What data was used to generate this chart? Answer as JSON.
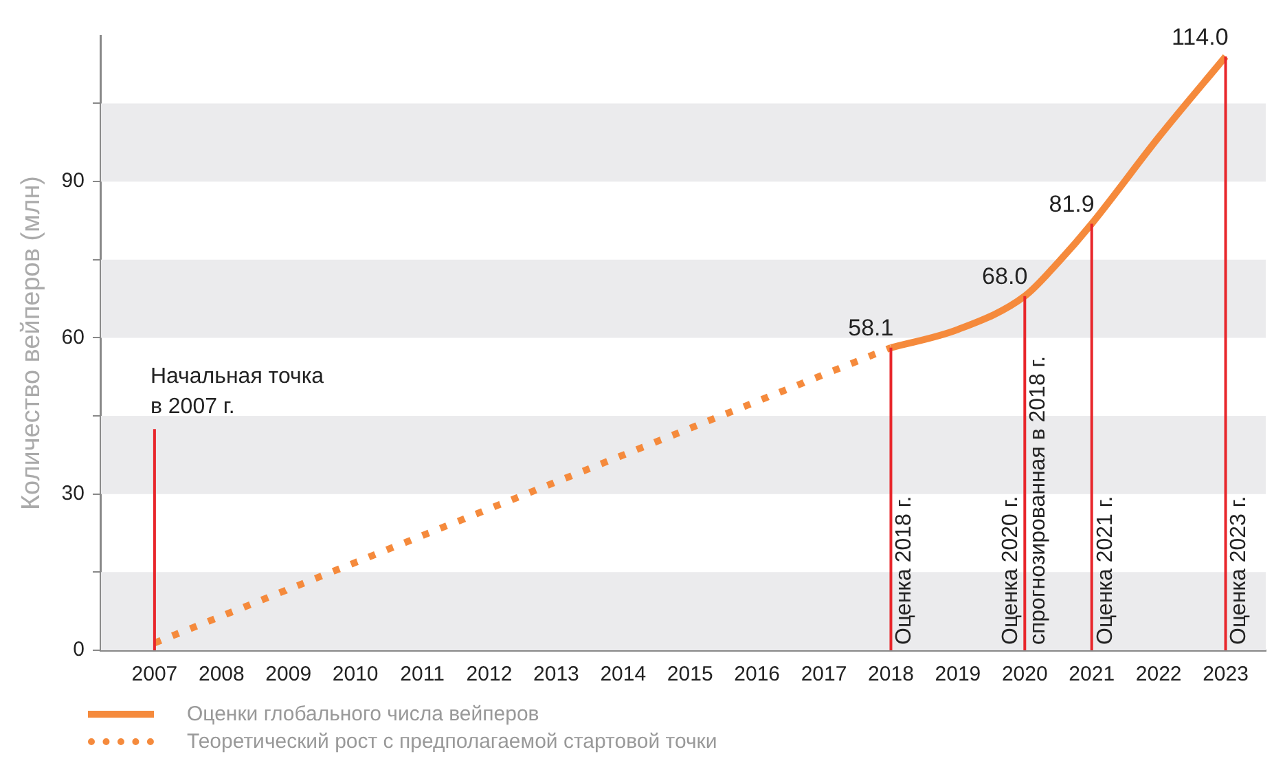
{
  "chart_data": {
    "type": "line",
    "ylabel": "Количество вейперов (млн)",
    "series": [
      {
        "name": "Оценки глобального числа вейперов",
        "color": "#f58a3c",
        "line_style": "solid",
        "x": [
          2018,
          2019,
          2020,
          2020.5,
          2021,
          2022,
          2023
        ],
        "values": [
          58.1,
          61.6,
          68.0,
          74.5,
          81.9,
          98.5,
          114.0
        ],
        "value_labels": [
          "58.1",
          null,
          "68.0",
          null,
          "81.9",
          null,
          "114.0"
        ]
      },
      {
        "name": "Теоретический рост с предполагаемой стартовой точки",
        "color": "#f58a3c",
        "line_style": "dotted",
        "x": [
          2007,
          2018
        ],
        "values": [
          1.4,
          58.1
        ]
      }
    ],
    "xlim": [
      2006.2,
      2023.6
    ],
    "xticks": [
      2007,
      2008,
      2009,
      2010,
      2011,
      2012,
      2013,
      2014,
      2015,
      2016,
      2017,
      2018,
      2019,
      2020,
      2021,
      2022,
      2023
    ],
    "ylim": [
      0,
      118
    ],
    "yticks": [
      0,
      {
        "value": 15,
        "label": null
      },
      30,
      {
        "value": 45,
        "label": null
      },
      60,
      {
        "value": 75,
        "label": null
      },
      90,
      {
        "value": 105,
        "label": null
      }
    ],
    "bands": [
      {
        "axis": "y",
        "from": 0,
        "to": 15,
        "color": "#ebebed"
      },
      {
        "axis": "y",
        "from": 30,
        "to": 45,
        "color": "#ebebed"
      },
      {
        "axis": "y",
        "from": 60,
        "to": 75,
        "color": "#ebebed"
      },
      {
        "axis": "y",
        "from": 90,
        "to": 105,
        "color": "#ebebed"
      }
    ],
    "ref_lines": [
      {
        "axis": "x",
        "value": 2007,
        "label": "Начальная точка\nв 2007 г.",
        "color": "#e8262b"
      },
      {
        "axis": "x",
        "value": 2018,
        "label": "Оценка 2018 г.",
        "color": "#e8262b"
      },
      {
        "axis": "x",
        "value": 2020,
        "label": "Оценка 2020 г.\nспрогнозированная в 2018 г.",
        "color": "#e8262b"
      },
      {
        "axis": "x",
        "value": 2021,
        "label": "Оценка 2021 г.",
        "color": "#e8262b"
      },
      {
        "axis": "x",
        "value": 2023,
        "label": "Оценка 2023 г.",
        "color": "#e8262b"
      }
    ],
    "grid": false,
    "legend": "bottom",
    "marker": "none"
  }
}
